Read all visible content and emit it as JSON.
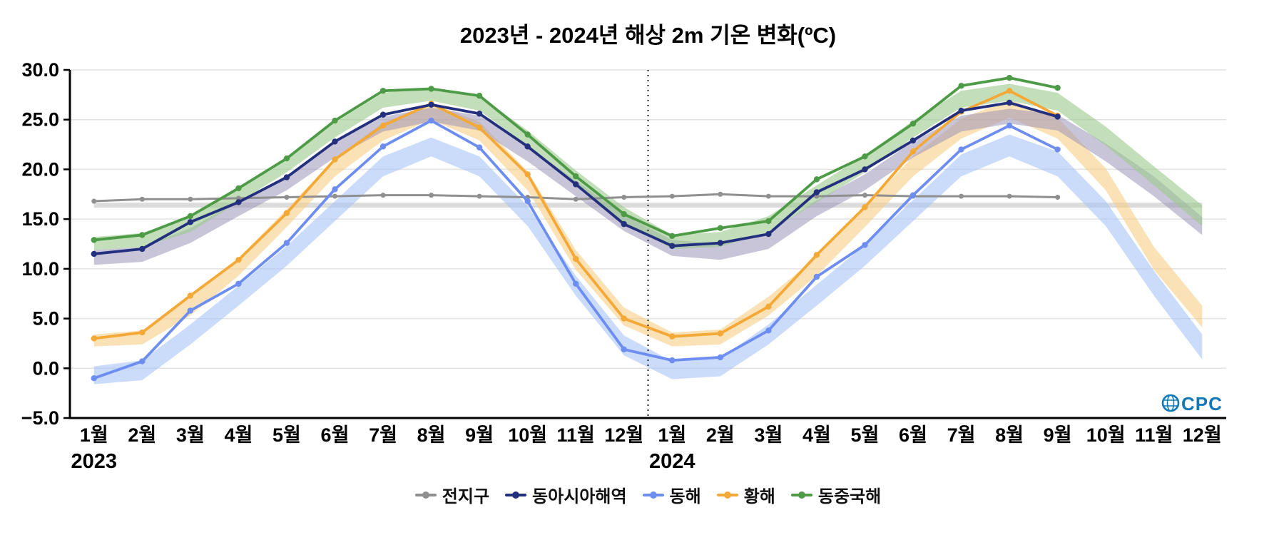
{
  "logo": {
    "text": "OCPC",
    "color": "#1279b6"
  },
  "chart_data": {
    "type": "line",
    "title": "2023년 - 2024년 해상 2m 기온 변화(ºC)",
    "xlabel": "",
    "ylabel": "",
    "ylim": [
      -5,
      30
    ],
    "ytick_values": [
      -5,
      0,
      5,
      10,
      15,
      20,
      25,
      30
    ],
    "ytick_labels": [
      "−5.0",
      "0.0",
      "5.0",
      "10.0",
      "15.0",
      "20.0",
      "25.0",
      "30.0"
    ],
    "x_labels": [
      "1월",
      "2월",
      "3월",
      "4월",
      "5월",
      "6월",
      "7월",
      "8월",
      "9월",
      "10월",
      "11월",
      "12월",
      "1월",
      "2월",
      "3월",
      "4월",
      "5월",
      "6월",
      "7월",
      "8월",
      "9월",
      "10월",
      "11월",
      "12월"
    ],
    "year_labels": [
      {
        "label": "2023",
        "month_index": 0
      },
      {
        "label": "2024",
        "month_index": 12
      }
    ],
    "divider_month_index": 12,
    "grid": true,
    "legend_position": "bottom",
    "legend_order": [
      0,
      3,
      1,
      2,
      4
    ],
    "series": [
      {
        "key": "global",
        "name": "전지구",
        "color": "#8f8f8f",
        "band_color": "#c0c0c0",
        "band_opacity": 0.55,
        "values": [
          16.8,
          17.0,
          17.0,
          17.1,
          17.2,
          17.3,
          17.4,
          17.4,
          17.3,
          17.2,
          17.0,
          17.2,
          17.3,
          17.5,
          17.3,
          17.3,
          17.4,
          17.3,
          17.3,
          17.3,
          17.2,
          null,
          null,
          null
        ],
        "band_lower": [
          16.15,
          16.15,
          16.15,
          16.15,
          16.15,
          16.15,
          16.15,
          16.15,
          16.15,
          16.15,
          16.15,
          16.15,
          16.15,
          16.15,
          16.15,
          16.15,
          16.15,
          16.15,
          16.15,
          16.15,
          16.15,
          16.15,
          16.15,
          16.15
        ],
        "band_upper": [
          16.65,
          16.65,
          16.65,
          16.65,
          16.65,
          16.65,
          16.65,
          16.65,
          16.65,
          16.65,
          16.65,
          16.65,
          16.65,
          16.65,
          16.65,
          16.65,
          16.65,
          16.65,
          16.65,
          16.65,
          16.65,
          16.65,
          16.65,
          16.65
        ]
      },
      {
        "key": "east-sea",
        "name": "동해",
        "color": "#6d8ef0",
        "band_color": "#a9c4f8",
        "band_opacity": 0.6,
        "values": [
          -1.0,
          0.7,
          5.8,
          8.5,
          12.6,
          18.0,
          22.3,
          24.9,
          22.2,
          16.8,
          8.5,
          1.9,
          0.8,
          1.1,
          3.8,
          9.2,
          12.4,
          17.4,
          22.0,
          24.4,
          22.0,
          null,
          null,
          null
        ],
        "band_lower": [
          -1.6,
          -1.2,
          2.4,
          6.3,
          10.3,
          14.8,
          19.3,
          21.3,
          19.3,
          14.3,
          7.3,
          1.3,
          -1.1,
          -0.8,
          2.4,
          6.3,
          10.3,
          14.8,
          19.3,
          21.3,
          19.3,
          14.3,
          7.3,
          0.9
        ],
        "band_upper": [
          0.2,
          0.8,
          4.4,
          8.3,
          12.3,
          16.8,
          21.3,
          23.2,
          21.3,
          16.3,
          9.3,
          3.3,
          0.7,
          1.0,
          4.4,
          8.4,
          12.4,
          16.9,
          21.5,
          23.5,
          21.8,
          16.8,
          9.8,
          3.4
        ]
      },
      {
        "key": "yellow-sea",
        "name": "황해",
        "color": "#f4a836",
        "band_color": "#f7cf85",
        "band_opacity": 0.6,
        "values": [
          3.0,
          3.6,
          7.3,
          10.9,
          15.6,
          21.0,
          24.4,
          26.6,
          24.2,
          19.5,
          11.0,
          5.0,
          3.2,
          3.5,
          6.2,
          11.4,
          16.2,
          21.8,
          25.8,
          27.9,
          25.4,
          null,
          null,
          null
        ],
        "band_lower": [
          2.2,
          2.4,
          5.3,
          9.3,
          14.2,
          19.3,
          22.9,
          25.0,
          22.9,
          17.9,
          9.9,
          4.3,
          2.2,
          2.4,
          5.3,
          9.3,
          14.2,
          19.3,
          23.1,
          25.2,
          23.1,
          17.9,
          9.9,
          4.1
        ],
        "band_upper": [
          3.4,
          3.8,
          7.1,
          11.1,
          16.0,
          21.1,
          24.7,
          26.6,
          24.8,
          19.8,
          11.9,
          6.1,
          3.6,
          3.9,
          7.2,
          11.2,
          16.2,
          21.3,
          25.1,
          27.0,
          25.2,
          20.1,
          12.2,
          6.3
        ]
      },
      {
        "key": "east-asia",
        "name": "동아시아해역",
        "color": "#23307e",
        "band_color": "#9d96b8",
        "band_opacity": 0.55,
        "values": [
          11.5,
          12.0,
          14.7,
          16.7,
          19.2,
          22.8,
          25.5,
          26.5,
          25.6,
          22.3,
          18.5,
          14.5,
          12.3,
          12.6,
          13.5,
          17.7,
          20.0,
          22.9,
          25.9,
          26.7,
          25.3,
          null,
          null,
          null
        ],
        "band_lower": [
          10.4,
          10.7,
          12.6,
          15.3,
          17.9,
          21.2,
          23.8,
          24.8,
          23.9,
          20.8,
          17.3,
          13.8,
          11.3,
          10.9,
          12.0,
          15.3,
          17.9,
          21.2,
          23.8,
          24.6,
          23.9,
          20.8,
          17.3,
          13.4
        ],
        "band_upper": [
          11.9,
          12.2,
          14.1,
          16.8,
          19.4,
          22.7,
          25.3,
          26.2,
          25.4,
          22.3,
          18.9,
          15.4,
          12.9,
          12.5,
          13.6,
          16.9,
          19.5,
          22.8,
          25.4,
          26.1,
          25.5,
          22.6,
          19.3,
          15.2
        ]
      },
      {
        "key": "east-china-sea",
        "name": "동중국해",
        "color": "#4d9b46",
        "band_color": "#9bc98c",
        "band_opacity": 0.6,
        "values": [
          12.9,
          13.4,
          15.3,
          18.1,
          21.1,
          24.9,
          27.9,
          28.1,
          27.4,
          23.5,
          19.3,
          15.5,
          13.3,
          14.1,
          14.8,
          19.0,
          21.3,
          24.6,
          28.4,
          29.2,
          28.2,
          null,
          null,
          null
        ],
        "band_lower": [
          11.9,
          12.2,
          13.7,
          16.7,
          19.7,
          23.2,
          26.2,
          26.9,
          25.9,
          22.4,
          18.4,
          14.7,
          12.0,
          12.2,
          13.7,
          16.7,
          19.7,
          23.2,
          26.2,
          26.9,
          25.9,
          22.4,
          18.4,
          14.3
        ],
        "band_upper": [
          13.2,
          13.6,
          15.2,
          18.2,
          21.2,
          24.7,
          27.7,
          28.2,
          27.4,
          23.9,
          19.9,
          16.2,
          13.4,
          13.7,
          15.3,
          18.4,
          21.4,
          24.9,
          27.9,
          28.6,
          27.7,
          24.3,
          20.3,
          16.4
        ]
      }
    ]
  }
}
